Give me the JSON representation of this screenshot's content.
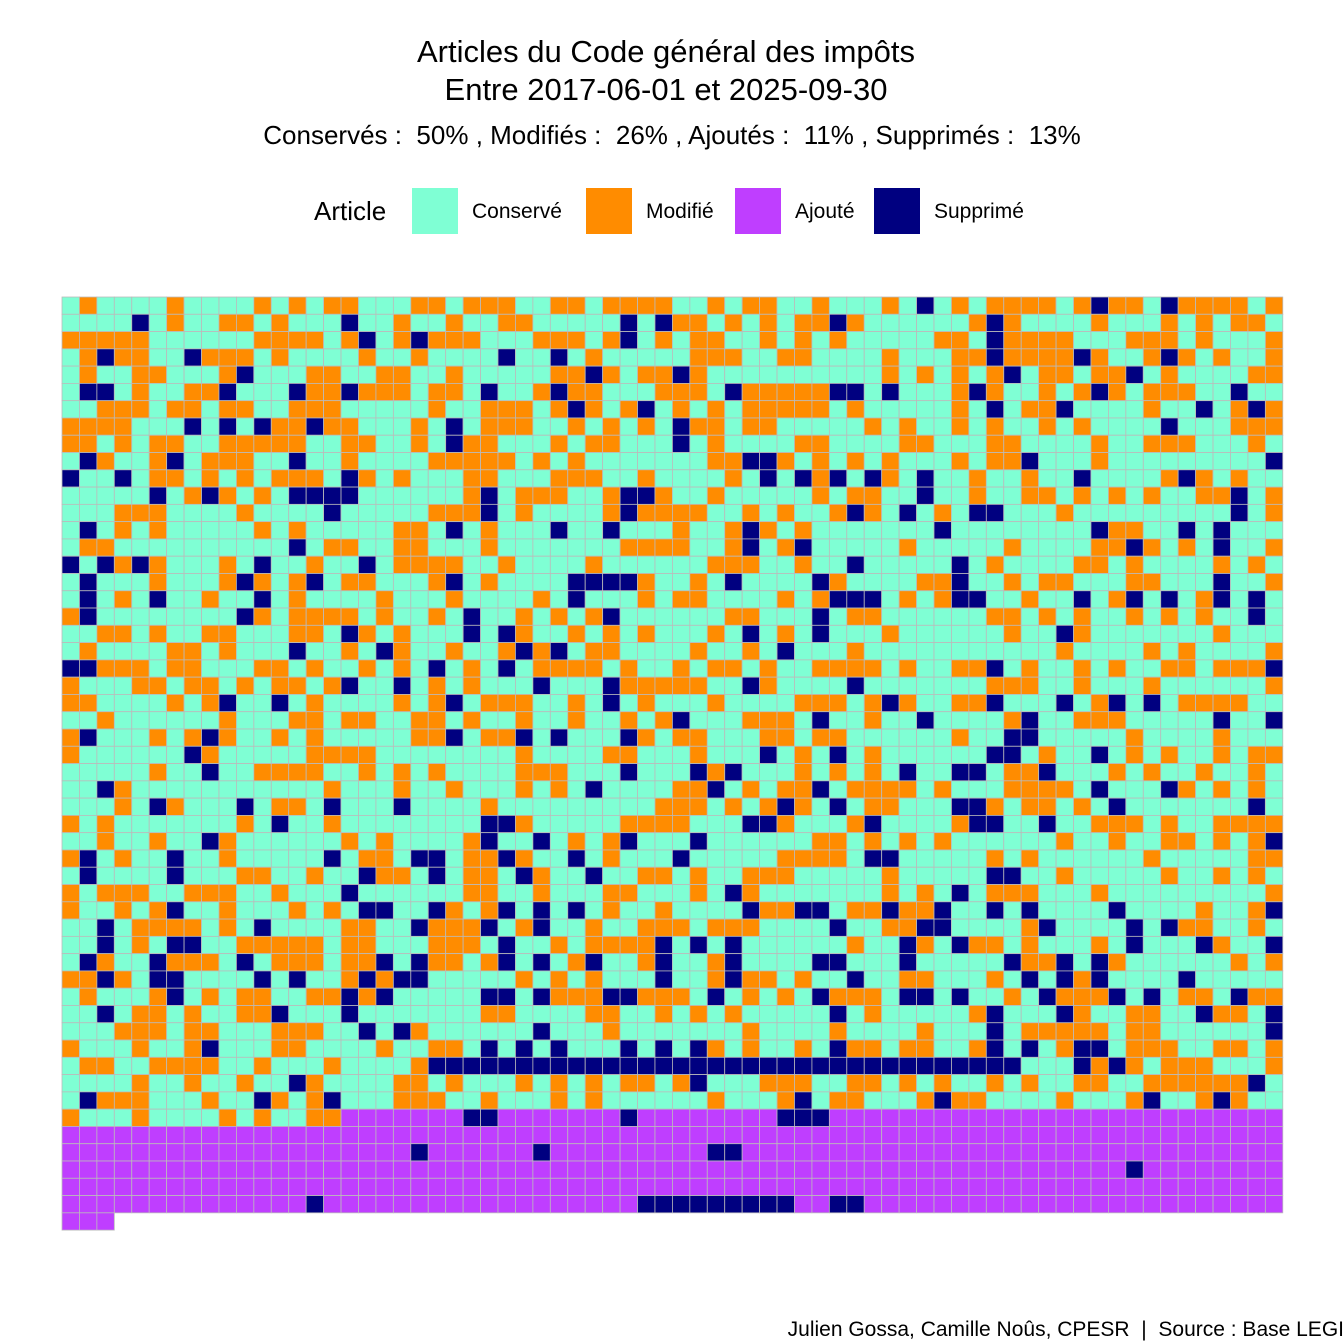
{
  "title_line1": "Articles du Code général des impôts",
  "title_line2": "Entre 2017-06-01 et 2025-09-30",
  "subtitle": "Conservés :  50% , Modifiés :  26% , Ajoutés :  11% , Supprimés :  13%",
  "caption": "Julien Gossa, Camille Noûs, CPESR  |  Source : Base LEGI",
  "legend": {
    "title": "Article",
    "position": "top",
    "items": [
      {
        "label": "Conservé",
        "color": "#7FFFD4"
      },
      {
        "label": "Modifié",
        "color": "#FF8C00"
      },
      {
        "label": "Ajouté",
        "color": "#BF3EFF"
      },
      {
        "label": "Supprimé",
        "color": "#000080"
      }
    ]
  },
  "chart_data": {
    "type": "heatmap",
    "title": "Articles du Code général des impôts\nEntre 2017-06-01 et 2025-09-30",
    "subtitle": "Conservés :  50% , Modifiés :  26% , Ajoutés :  11% , Supprimés :  13%",
    "categories": [
      "Conservé",
      "Modifié",
      "Ajouté",
      "Supprimé"
    ],
    "shares_percent": {
      "Conservé": 50,
      "Modifié": 26,
      "Ajouté": 11,
      "Supprimé": 13
    },
    "colors": {
      "Conservé": "#7FFFD4",
      "Modifié": "#FF8C00",
      "Ajouté": "#BF3EFF",
      "Supprimé": "#000080"
    },
    "cell_border_color": "#bbbbbb",
    "grid": {
      "columns": 70,
      "rows": 54
    },
    "layout_note": "one tile per article, filled row by row; Ajouté tiles form the bottom block",
    "grid_lines": false
  }
}
